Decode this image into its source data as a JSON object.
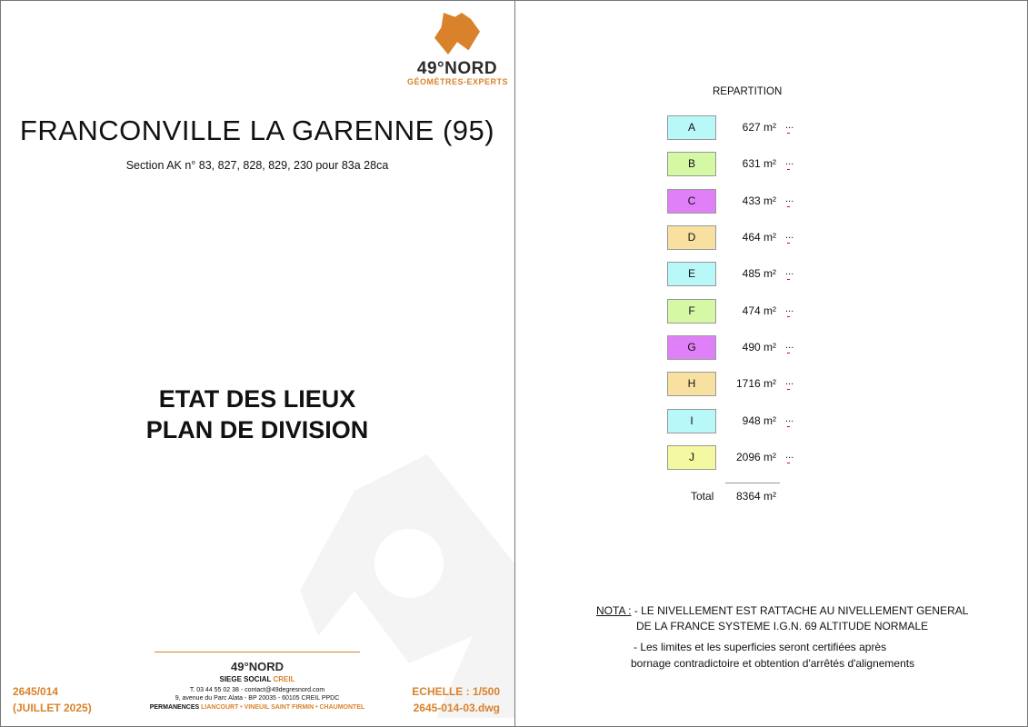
{
  "logo": {
    "name": "49°NORD",
    "tagline": "GÉOMÈTRES-EXPERTS"
  },
  "title": "FRANCONVILLE LA GARENNE (95)",
  "subtitle": "Section  AK n° 83, 827, 828, 829, 230 pour 83a 28ca",
  "main_title": [
    "ETAT  DES  LIEUX",
    "PLAN DE DIVISION"
  ],
  "footer": {
    "logo": "49°NORD",
    "siege": "SIEGE SOCIAL ",
    "siege_city": "CREIL",
    "contact": "T. 03 44 55 02 38 - contact@49degresnord.com",
    "address": "9, avenue du Parc Alata - BP 20035 - 60105 CREIL PPDC",
    "permanences": "PERMANENCES ",
    "permanences_cities": "LIANCOURT • VINEUIL SAINT FIRMIN • CHAUMONTEL",
    "ref": "2645/014",
    "date": "(JUILLET 2025)",
    "scale": "ECHELLE : 1/500",
    "file": "2645-014-03.dwg"
  },
  "repartition": {
    "title": "REPARTITION",
    "rows": [
      {
        "lot": "A",
        "area": "627 m²",
        "color": "#b8f8f8"
      },
      {
        "lot": "B",
        "area": "631 m²",
        "color": "#d4f8a4"
      },
      {
        "lot": "C",
        "area": "433 m²",
        "color": "#e080f8"
      },
      {
        "lot": "D",
        "area": "464 m²",
        "color": "#f8e0a0"
      },
      {
        "lot": "E",
        "area": "485 m²",
        "color": "#b8f8f8"
      },
      {
        "lot": "F",
        "area": "474 m²",
        "color": "#d4f8a4"
      },
      {
        "lot": "G",
        "area": "490 m²",
        "color": "#e080f8"
      },
      {
        "lot": "H",
        "area": "1716 m²",
        "color": "#f8e0a0"
      },
      {
        "lot": "I",
        "area": "948 m²",
        "color": "#b8f8f8"
      },
      {
        "lot": "J",
        "area": "2096 m²",
        "color": "#f4f8a0"
      }
    ],
    "dots": "...",
    "total_label": "Total",
    "total": "8364 m²"
  },
  "nota": {
    "label": "NOTA :",
    "line1": " - LE NIVELLEMENT EST RATTACHE AU NIVELLEMENT GENERAL",
    "line2": "DE LA FRANCE SYSTEME  I.G.N. 69  ALTITUDE NORMALE",
    "line3": "- Les limites et les superficies seront certifiées après",
    "line4": "bornage contradictoire et obtention d'arrêtés d'alignements"
  }
}
